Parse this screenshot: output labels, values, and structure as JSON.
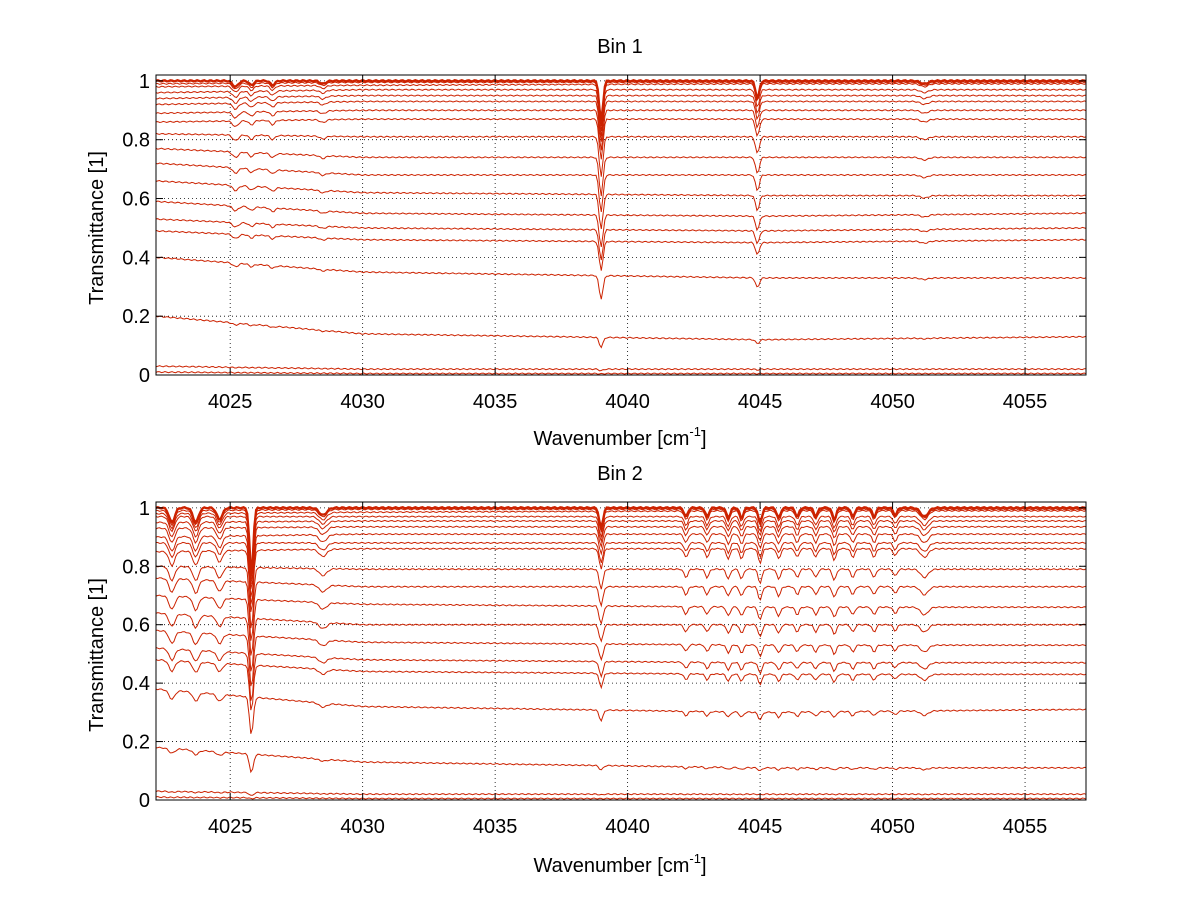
{
  "chart_data": [
    {
      "type": "line",
      "title": "Bin 1",
      "xlabel": "Wavenumber [cm",
      "xlabel_sup": "-1",
      "xlabel_end": "]",
      "ylabel": "Transmittance [1]",
      "xlim": [
        4022.2,
        4057.3
      ],
      "ylim": [
        0,
        1.02
      ],
      "xticks": [
        4025,
        4030,
        4035,
        4040,
        4045,
        4050,
        4055
      ],
      "yticks": [
        0,
        0.2,
        0.4,
        0.6,
        0.8,
        1
      ],
      "ytick_labels": [
        "0",
        "0.2",
        "0.4",
        "0.6",
        "0.8",
        "1"
      ],
      "grid": true,
      "series_color": "#cc2200",
      "absorption_lines": [
        {
          "x": 4039.0,
          "width": 0.1,
          "depth": 0.28
        },
        {
          "x": 4044.9,
          "width": 0.1,
          "depth": 0.12
        },
        {
          "x": 4025.2,
          "width": 0.15,
          "depth": 0.04
        },
        {
          "x": 4025.8,
          "width": 0.12,
          "depth": 0.03
        },
        {
          "x": 4026.6,
          "width": 0.12,
          "depth": 0.03
        },
        {
          "x": 4028.5,
          "width": 0.15,
          "depth": 0.02
        },
        {
          "x": 4051.2,
          "width": 0.2,
          "depth": 0.02
        }
      ],
      "series": [
        {
          "values": [
            1.0,
            1.0,
            1.0,
            1.0
          ],
          "x": [
            4022.2,
            4030,
            4045,
            4057.3
          ]
        },
        {
          "values": [
            0.99,
            0.995,
            0.995,
            0.995
          ],
          "x": [
            4022.2,
            4030,
            4045,
            4057.3
          ]
        },
        {
          "values": [
            0.98,
            0.985,
            0.99,
            0.99
          ],
          "x": [
            4022.2,
            4030,
            4045,
            4057.3
          ]
        },
        {
          "values": [
            0.96,
            0.97,
            0.97,
            0.97
          ],
          "x": [
            4022.2,
            4030,
            4045,
            4057.3
          ]
        },
        {
          "values": [
            0.94,
            0.95,
            0.95,
            0.95
          ],
          "x": [
            4022.2,
            4030,
            4045,
            4057.3
          ]
        },
        {
          "values": [
            0.92,
            0.93,
            0.93,
            0.93
          ],
          "x": [
            4022.2,
            4030,
            4045,
            4057.3
          ]
        },
        {
          "values": [
            0.89,
            0.9,
            0.9,
            0.9
          ],
          "x": [
            4022.2,
            4030,
            4045,
            4057.3
          ]
        },
        {
          "values": [
            0.86,
            0.87,
            0.87,
            0.87
          ],
          "x": [
            4022.2,
            4030,
            4045,
            4057.3
          ]
        },
        {
          "values": [
            0.82,
            0.81,
            0.81,
            0.81
          ],
          "x": [
            4022.2,
            4030,
            4045,
            4057.3
          ]
        },
        {
          "values": [
            0.77,
            0.74,
            0.74,
            0.74
          ],
          "x": [
            4022.2,
            4030,
            4045,
            4057.3
          ]
        },
        {
          "values": [
            0.72,
            0.68,
            0.68,
            0.68
          ],
          "x": [
            4022.2,
            4030,
            4045,
            4057.3
          ]
        },
        {
          "values": [
            0.66,
            0.62,
            0.61,
            0.61
          ],
          "x": [
            4022.2,
            4030,
            4045,
            4057.3
          ]
        },
        {
          "values": [
            0.59,
            0.55,
            0.54,
            0.55
          ],
          "x": [
            4022.2,
            4030,
            4045,
            4057.3
          ]
        },
        {
          "values": [
            0.53,
            0.5,
            0.49,
            0.5
          ],
          "x": [
            4022.2,
            4030,
            4045,
            4057.3
          ]
        },
        {
          "values": [
            0.49,
            0.46,
            0.45,
            0.46
          ],
          "x": [
            4022.2,
            4030,
            4045,
            4057.3
          ]
        },
        {
          "values": [
            0.4,
            0.35,
            0.33,
            0.33
          ],
          "x": [
            4022.2,
            4030,
            4045,
            4057.3
          ]
        },
        {
          "values": [
            0.2,
            0.14,
            0.12,
            0.13
          ],
          "x": [
            4022.2,
            4030,
            4045,
            4057.3
          ]
        },
        {
          "values": [
            0.03,
            0.02,
            0.02,
            0.02
          ],
          "x": [
            4022.2,
            4030,
            4045,
            4057.3
          ]
        },
        {
          "values": [
            0.01,
            0.005,
            0.005,
            0.005
          ],
          "x": [
            4022.2,
            4030,
            4045,
            4057.3
          ]
        }
      ]
    },
    {
      "type": "line",
      "title": "Bin 2",
      "xlabel": "Wavenumber [cm",
      "xlabel_sup": "-1",
      "xlabel_end": "]",
      "ylabel": "Transmittance [1]",
      "xlim": [
        4022.2,
        4057.3
      ],
      "ylim": [
        0,
        1.02
      ],
      "xticks": [
        4025,
        4030,
        4035,
        4040,
        4045,
        4050,
        4055
      ],
      "yticks": [
        0,
        0.2,
        0.4,
        0.6,
        0.8,
        1
      ],
      "ytick_labels": [
        "0",
        "0.2",
        "0.4",
        "0.6",
        "0.8",
        "1"
      ],
      "grid": true,
      "series_color": "#cc2200",
      "absorption_lines": [
        {
          "x": 4022.8,
          "width": 0.15,
          "depth": 0.1
        },
        {
          "x": 4023.7,
          "width": 0.15,
          "depth": 0.1
        },
        {
          "x": 4024.6,
          "width": 0.15,
          "depth": 0.08
        },
        {
          "x": 4025.8,
          "width": 0.1,
          "depth": 0.45
        },
        {
          "x": 4028.5,
          "width": 0.2,
          "depth": 0.05
        },
        {
          "x": 4039.0,
          "width": 0.1,
          "depth": 0.14
        },
        {
          "x": 4042.2,
          "width": 0.1,
          "depth": 0.06
        },
        {
          "x": 4043.0,
          "width": 0.1,
          "depth": 0.06
        },
        {
          "x": 4043.8,
          "width": 0.1,
          "depth": 0.07
        },
        {
          "x": 4044.3,
          "width": 0.1,
          "depth": 0.07
        },
        {
          "x": 4045.0,
          "width": 0.1,
          "depth": 0.1
        },
        {
          "x": 4045.7,
          "width": 0.1,
          "depth": 0.07
        },
        {
          "x": 4046.4,
          "width": 0.1,
          "depth": 0.06
        },
        {
          "x": 4047.1,
          "width": 0.1,
          "depth": 0.06
        },
        {
          "x": 4047.8,
          "width": 0.1,
          "depth": 0.08
        },
        {
          "x": 4048.5,
          "width": 0.1,
          "depth": 0.06
        },
        {
          "x": 4049.3,
          "width": 0.1,
          "depth": 0.06
        },
        {
          "x": 4050.1,
          "width": 0.1,
          "depth": 0.05
        },
        {
          "x": 4051.2,
          "width": 0.2,
          "depth": 0.06
        }
      ],
      "series": [
        {
          "values": [
            1.0,
            1.0,
            1.0,
            1.0
          ],
          "x": [
            4022.2,
            4030,
            4045,
            4057.3
          ]
        },
        {
          "values": [
            0.99,
            0.995,
            0.995,
            0.995
          ],
          "x": [
            4022.2,
            4030,
            4045,
            4057.3
          ]
        },
        {
          "values": [
            0.98,
            0.985,
            0.99,
            0.99
          ],
          "x": [
            4022.2,
            4030,
            4045,
            4057.3
          ]
        },
        {
          "values": [
            0.97,
            0.97,
            0.97,
            0.97
          ],
          "x": [
            4022.2,
            4030,
            4045,
            4057.3
          ]
        },
        {
          "values": [
            0.95,
            0.955,
            0.955,
            0.955
          ],
          "x": [
            4022.2,
            4030,
            4045,
            4057.3
          ]
        },
        {
          "values": [
            0.93,
            0.935,
            0.935,
            0.935
          ],
          "x": [
            4022.2,
            4030,
            4045,
            4057.3
          ]
        },
        {
          "values": [
            0.9,
            0.91,
            0.91,
            0.91
          ],
          "x": [
            4022.2,
            4030,
            4045,
            4057.3
          ]
        },
        {
          "values": [
            0.88,
            0.88,
            0.88,
            0.88
          ],
          "x": [
            4022.2,
            4030,
            4045,
            4057.3
          ]
        },
        {
          "values": [
            0.85,
            0.86,
            0.86,
            0.86
          ],
          "x": [
            4022.2,
            4030,
            4045,
            4057.3
          ]
        },
        {
          "values": [
            0.8,
            0.79,
            0.79,
            0.79
          ],
          "x": [
            4022.2,
            4030,
            4045,
            4057.3
          ]
        },
        {
          "values": [
            0.76,
            0.73,
            0.73,
            0.73
          ],
          "x": [
            4022.2,
            4030,
            4045,
            4057.3
          ]
        },
        {
          "values": [
            0.7,
            0.67,
            0.66,
            0.66
          ],
          "x": [
            4022.2,
            4030,
            4045,
            4057.3
          ]
        },
        {
          "values": [
            0.64,
            0.6,
            0.6,
            0.6
          ],
          "x": [
            4022.2,
            4030,
            4045,
            4057.3
          ]
        },
        {
          "values": [
            0.58,
            0.54,
            0.53,
            0.53
          ],
          "x": [
            4022.2,
            4030,
            4045,
            4057.3
          ]
        },
        {
          "values": [
            0.52,
            0.48,
            0.47,
            0.47
          ],
          "x": [
            4022.2,
            4030,
            4045,
            4057.3
          ]
        },
        {
          "values": [
            0.48,
            0.44,
            0.43,
            0.43
          ],
          "x": [
            4022.2,
            4030,
            4045,
            4057.3
          ]
        },
        {
          "values": [
            0.38,
            0.32,
            0.3,
            0.31
          ],
          "x": [
            4022.2,
            4030,
            4045,
            4057.3
          ]
        },
        {
          "values": [
            0.18,
            0.13,
            0.11,
            0.11
          ],
          "x": [
            4022.2,
            4030,
            4045,
            4057.3
          ]
        },
        {
          "values": [
            0.03,
            0.02,
            0.02,
            0.02
          ],
          "x": [
            4022.2,
            4030,
            4045,
            4057.3
          ]
        },
        {
          "values": [
            0.01,
            0.005,
            0.005,
            0.005
          ],
          "x": [
            4022.2,
            4030,
            4045,
            4057.3
          ]
        }
      ]
    }
  ]
}
